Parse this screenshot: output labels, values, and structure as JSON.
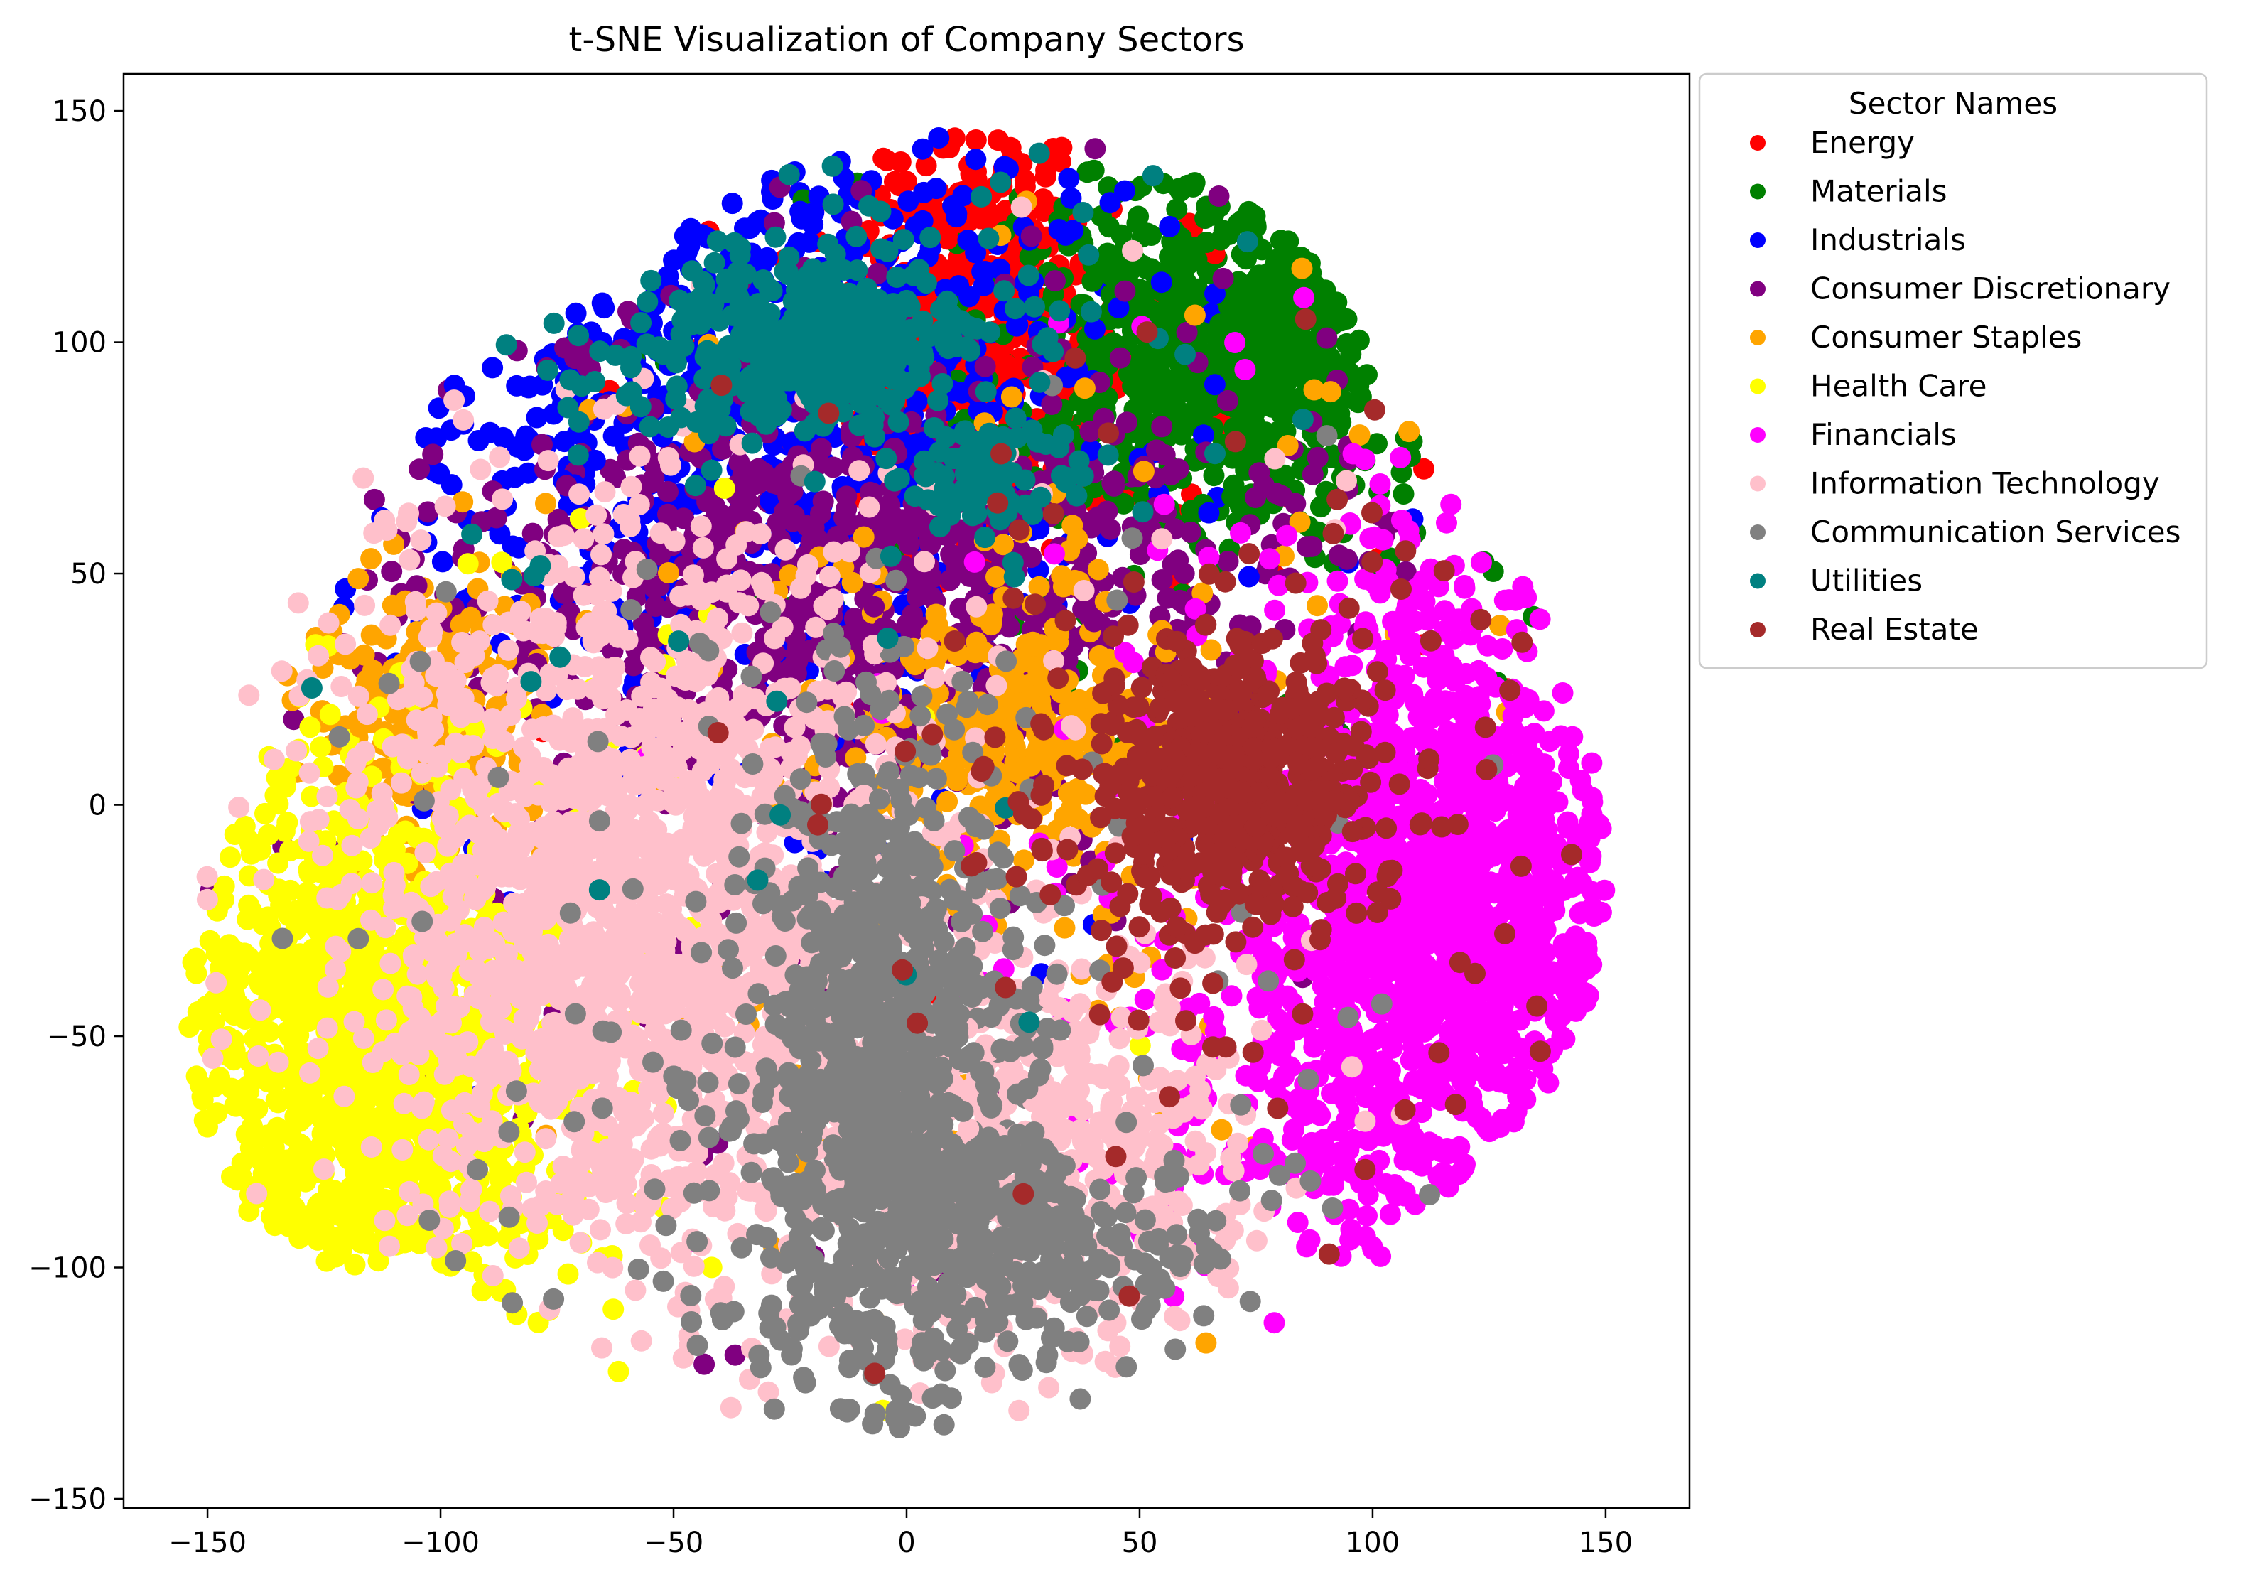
{
  "chart_data": {
    "type": "scatter",
    "title": "t-SNE Visualization of Company Sectors",
    "xlabel": "",
    "ylabel": "",
    "xlim": [
      -168,
      168
    ],
    "ylim": [
      -152,
      158
    ],
    "x_ticks": [
      -150,
      -100,
      -50,
      0,
      50,
      100,
      150
    ],
    "y_ticks": [
      -150,
      -100,
      -50,
      0,
      50,
      100,
      150
    ],
    "x_tick_labels": [
      "−150",
      "−100",
      "−50",
      "0",
      "50",
      "100",
      "150"
    ],
    "y_tick_labels": [
      "−150",
      "−100",
      "−50",
      "0",
      "50",
      "100",
      "150"
    ],
    "grid": false,
    "legend": {
      "title": "Sector Names",
      "placement": "outside-upper-right"
    },
    "series": [
      {
        "name": "Energy",
        "color": "#ff0000",
        "clusters": [
          {
            "cx": 15,
            "cy": 105,
            "sx": 14,
            "sy": 22,
            "n": 420
          }
        ],
        "scatter_sigma": 45,
        "scatter_n": 120
      },
      {
        "name": "Materials",
        "color": "#008000",
        "clusters": [
          {
            "cx": 70,
            "cy": 100,
            "sx": 22,
            "sy": 18,
            "n": 900
          }
        ],
        "scatter_sigma": 60,
        "scatter_n": 150
      },
      {
        "name": "Industrials",
        "color": "#0000ff",
        "clusters": [
          {
            "cx": -30,
            "cy": 90,
            "sx": 35,
            "sy": 30,
            "n": 650
          }
        ],
        "scatter_sigma": 60,
        "scatter_n": 200
      },
      {
        "name": "Consumer Discretionary",
        "color": "#800080",
        "clusters": [
          {
            "cx": -10,
            "cy": 45,
            "sx": 45,
            "sy": 22,
            "n": 800
          }
        ],
        "scatter_sigma": 65,
        "scatter_n": 250
      },
      {
        "name": "Consumer Staples",
        "color": "#ffa500",
        "clusters": [
          {
            "cx": 25,
            "cy": 15,
            "sx": 16,
            "sy": 14,
            "n": 300
          },
          {
            "cx": -105,
            "cy": 20,
            "sx": 12,
            "sy": 16,
            "n": 220
          }
        ],
        "scatter_sigma": 55,
        "scatter_n": 150
      },
      {
        "name": "Health Care",
        "color": "#ffff00",
        "clusters": [
          {
            "cx": -115,
            "cy": -55,
            "sx": 20,
            "sy": 28,
            "n": 1400
          }
        ],
        "scatter_sigma": 55,
        "scatter_n": 150
      },
      {
        "name": "Financials",
        "color": "#ff00ff",
        "clusters": [
          {
            "cx": 110,
            "cy": -25,
            "sx": 22,
            "sy": 35,
            "n": 1500
          }
        ],
        "scatter_sigma": 60,
        "scatter_n": 250
      },
      {
        "name": "Information Technology",
        "color": "#ffc0cb",
        "clusters": [
          {
            "cx": -60,
            "cy": -25,
            "sx": 28,
            "sy": 38,
            "n": 1500
          },
          {
            "cx": 30,
            "cy": -75,
            "sx": 22,
            "sy": 20,
            "n": 500
          }
        ],
        "scatter_sigma": 70,
        "scatter_n": 350
      },
      {
        "name": "Communication Services",
        "color": "#808080",
        "clusters": [
          {
            "cx": -5,
            "cy": -60,
            "sx": 14,
            "sy": 35,
            "n": 900
          },
          {
            "cx": 25,
            "cy": -95,
            "sx": 20,
            "sy": 10,
            "n": 250
          }
        ],
        "scatter_sigma": 60,
        "scatter_n": 200
      },
      {
        "name": "Utilities",
        "color": "#008080",
        "clusters": [
          {
            "cx": -20,
            "cy": 100,
            "sx": 18,
            "sy": 10,
            "n": 450
          },
          {
            "cx": 15,
            "cy": 70,
            "sx": 8,
            "sy": 6,
            "n": 90
          }
        ],
        "scatter_sigma": 55,
        "scatter_n": 80
      },
      {
        "name": "Real Estate",
        "color": "#a52a2a",
        "clusters": [
          {
            "cx": 70,
            "cy": 5,
            "sx": 14,
            "sy": 14,
            "n": 550
          }
        ],
        "scatter_sigma": 50,
        "scatter_n": 150
      }
    ]
  }
}
